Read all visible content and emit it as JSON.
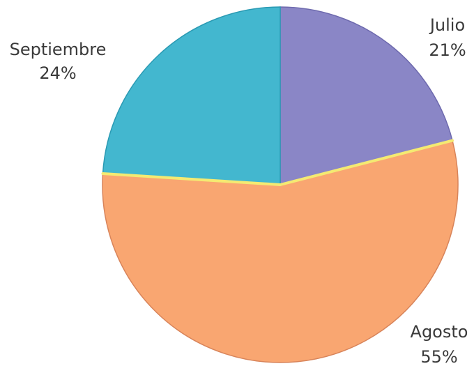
{
  "chart_data": {
    "type": "pie",
    "start_angle_deg": 0,
    "direction": "clockwise",
    "slices": [
      {
        "label": "Julio",
        "percent_text": "21%",
        "value": 21,
        "color": "#8a86c6",
        "border": "#6e6aae"
      },
      {
        "label": "Agosto",
        "percent_text": "55%",
        "value": 55,
        "color": "#f9a671",
        "border": "#d8845a"
      },
      {
        "label": "Septiembre",
        "percent_text": "24%",
        "value": 24,
        "color": "#43b7cf",
        "border": "#2a9ab3"
      }
    ],
    "separator_color": "#f4ea72",
    "legend": "none"
  }
}
